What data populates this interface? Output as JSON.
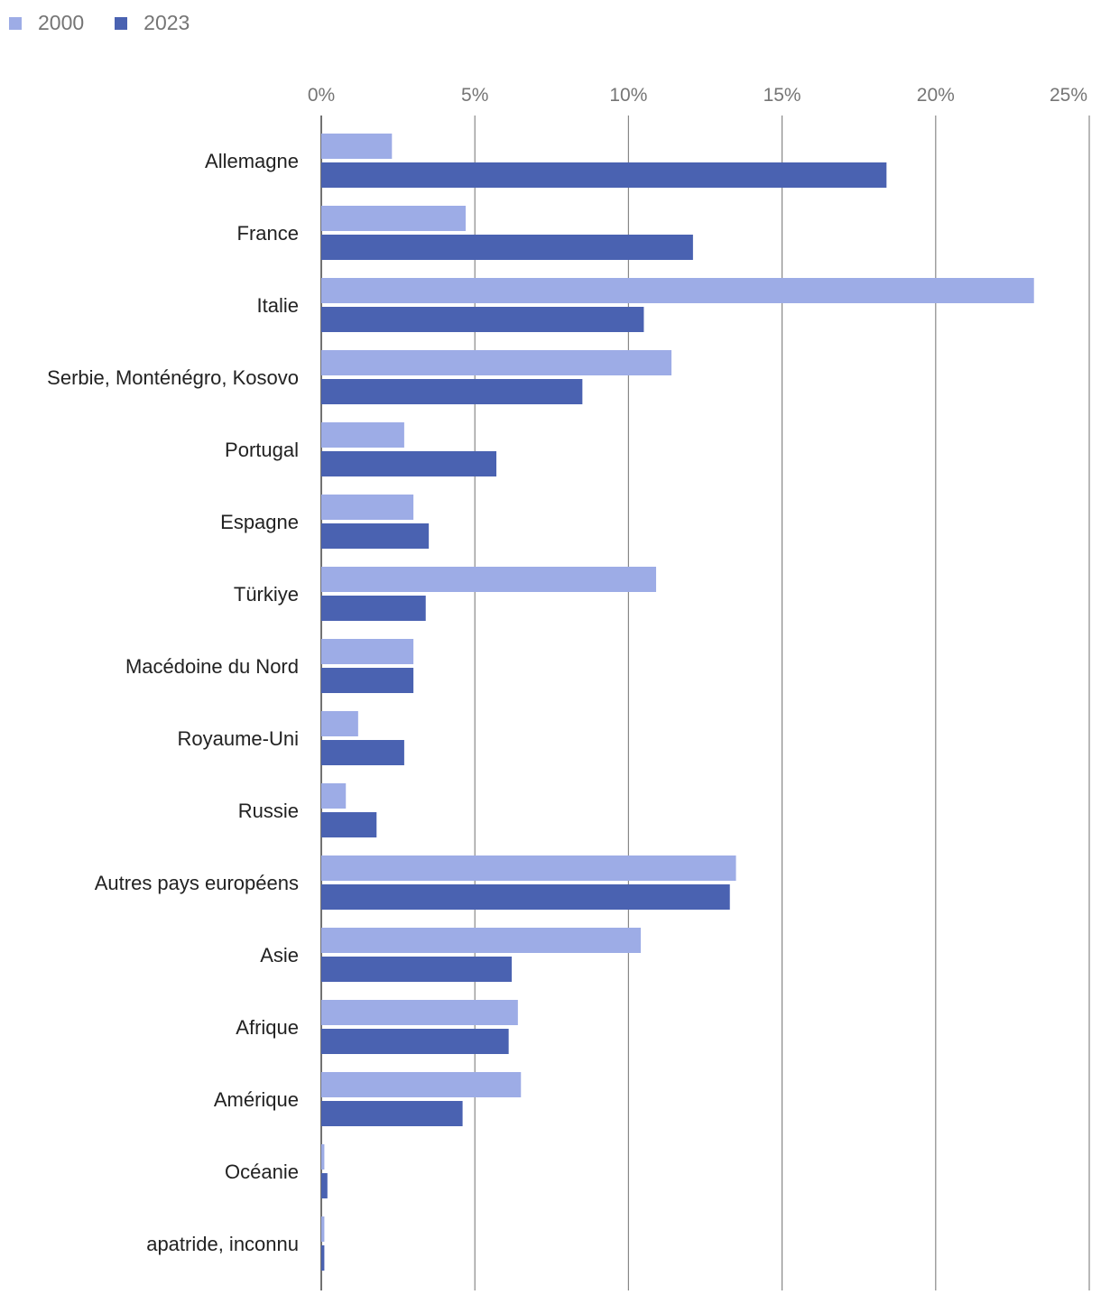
{
  "chart_data": {
    "type": "bar",
    "orientation": "horizontal",
    "categories": [
      "Allemagne",
      "France",
      "Italie",
      "Serbie, Monténégro, Kosovo",
      "Portugal",
      "Espagne",
      "Türkiye",
      "Macédoine du Nord",
      "Royaume-Uni",
      "Russie",
      "Autres pays européens",
      "Asie",
      "Afrique",
      "Amérique",
      "Océanie",
      "apatride, inconnu"
    ],
    "series": [
      {
        "name": "2000",
        "color": "#9dacE6",
        "values": [
          2.3,
          4.7,
          23.2,
          11.4,
          2.7,
          3.0,
          10.9,
          3.0,
          1.2,
          0.8,
          13.5,
          10.4,
          6.4,
          6.5,
          0.1,
          0.1
        ]
      },
      {
        "name": "2023",
        "color": "#4a62b1",
        "values": [
          18.4,
          12.1,
          10.5,
          8.5,
          5.7,
          3.5,
          3.4,
          3.0,
          2.7,
          1.8,
          13.3,
          6.2,
          6.1,
          4.6,
          0.2,
          0.1
        ]
      }
    ],
    "xlim": [
      0,
      25
    ],
    "ticks": [
      "0%",
      "5%",
      "10%",
      "15%",
      "20%",
      "25%"
    ],
    "tick_values": [
      0,
      5,
      10,
      15,
      20,
      25
    ],
    "legend_position": "top-left",
    "grid": true,
    "title": "",
    "xlabel": "",
    "ylabel": ""
  }
}
